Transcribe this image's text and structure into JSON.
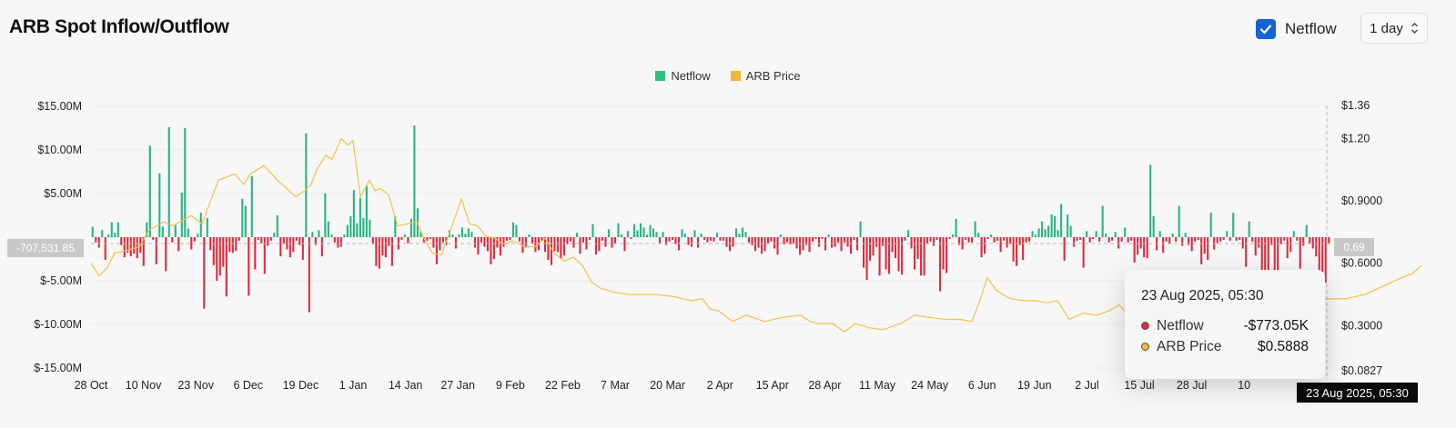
{
  "header": {
    "title": "ARB Spot Inflow/Outflow",
    "netflow_toggle_label": "Netflow",
    "interval_value": "1 day"
  },
  "crosshair": {
    "left_value": "-707,531.85",
    "right_value": "0.69",
    "time_label": "23 Aug 2025, 05:30"
  },
  "tooltip": {
    "date": "23 Aug 2025, 05:30",
    "rows": [
      {
        "name": "Netflow",
        "value": "-$773.05K",
        "color": "#e2293c"
      },
      {
        "name": "ARB Price",
        "value": "$0.5888",
        "color": "#f0b93a"
      }
    ]
  },
  "colors": {
    "positive": "#27b582",
    "negative": "#e2293c",
    "price": "#f5c04d",
    "accent": "#1463d4"
  },
  "chart_data": {
    "type": "bar+line",
    "legend": [
      "Netflow",
      "ARB Price"
    ],
    "x_tick_labels": [
      "28 Oct",
      "10 Nov",
      "23 Nov",
      "6 Dec",
      "19 Dec",
      "1 Jan",
      "14 Jan",
      "27 Jan",
      "9 Feb",
      "22 Feb",
      "7 Mar",
      "20 Mar",
      "2 Apr",
      "15 Apr",
      "28 Apr",
      "11 May",
      "24 May",
      "6 Jun",
      "19 Jun",
      "2 Jul",
      "15 Jul",
      "28 Jul",
      "10"
    ],
    "y_left": {
      "ticks": [
        15,
        10,
        5,
        0,
        -5,
        -10,
        -15
      ],
      "tick_labels": [
        "$15.00M",
        "$10.00M",
        "$5.00M",
        "",
        "$-5.00M",
        "$-10.00M",
        "$-15.00M"
      ],
      "range": [
        -15,
        15
      ],
      "unit": "M USD"
    },
    "y_right": {
      "tick_labels": [
        "$1.36",
        "$1.20",
        "$0.9000",
        "$0.6000",
        "$0.3000",
        "$0.0827"
      ],
      "tick_values": [
        1.36,
        1.2,
        0.9,
        0.6,
        0.3,
        0.0827
      ],
      "range": [
        0.0827,
        1.36
      ]
    },
    "series": [
      {
        "name": "Netflow",
        "unit": "M USD",
        "values": [
          1.2,
          -0.6,
          -1.2,
          0.8,
          -2.6,
          0.3,
          1.7,
          0.5,
          1.7,
          -0.9,
          -2.3,
          -1.8,
          -2.2,
          -1.9,
          -2.4,
          -1.8,
          -3.3,
          1.7,
          10.5,
          -0.3,
          -3.1,
          7.3,
          1.2,
          -3.9,
          12.6,
          -0.6,
          1.4,
          -1.6,
          5.1,
          12.5,
          1.0,
          -1.4,
          -0.5,
          0.4,
          2.8,
          -8.2,
          2.2,
          -1.5,
          -3.2,
          -5.0,
          -4.4,
          -3.4,
          -6.8,
          -1.7,
          -1.8,
          -1.6,
          -0.4,
          4.4,
          3.6,
          -6.7,
          7.0,
          -3.7,
          -0.3,
          -0.7,
          -4.2,
          -1.0,
          -0.4,
          0.5,
          2.5,
          -2.2,
          -0.8,
          -1.4,
          -2.3,
          -1.7,
          -0.4,
          -0.9,
          -2.6,
          11.9,
          -8.6,
          0.6,
          -0.9,
          0.8,
          -2.2,
          5.0,
          1.8,
          0.3,
          -0.6,
          -1.2,
          -1.1,
          0.3,
          1.4,
          2.4,
          5.4,
          1.6,
          4.5,
          2.2,
          5.9,
          2.0,
          -0.8,
          -3.3,
          -3.6,
          -2.1,
          -2.3,
          -1.0,
          -3.3,
          2.4,
          -1.4,
          -0.3,
          0.3,
          -0.7,
          2.1,
          12.8,
          3.3,
          0.7,
          -0.6,
          -0.4,
          -0.2,
          -1.2,
          -3.1,
          -1.5,
          -0.6,
          -0.9,
          0.8,
          0.3,
          -1.3,
          0.3,
          1.1,
          0.4,
          1.0,
          0.6,
          -1.2,
          -2.0,
          -0.6,
          -1.1,
          -1.6,
          -3.1,
          -2.5,
          -1.2,
          -2.1,
          -1.1,
          -0.4,
          -0.3,
          1.7,
          1.4,
          -0.5,
          -1.8,
          -1.2,
          0.3,
          -0.7,
          -1.7,
          -1.5,
          -0.4,
          -1.7,
          -2.6,
          -3.2,
          -1.6,
          -1.7,
          -2.4,
          -2.1,
          -0.8,
          -0.5,
          -1.2,
          0.5,
          -1.9,
          -0.6,
          -1.4,
          -0.3,
          1.5,
          -2.0,
          -1.6,
          -0.4,
          -1.1,
          0.9,
          -1.2,
          -0.8,
          1.6,
          0.3,
          -1.6,
          0.7,
          -0.2,
          1.5,
          0.8,
          1.6,
          1.1,
          0.3,
          1.4,
          1.0,
          0.6,
          -0.7,
          0.6,
          -0.9,
          -0.5,
          -0.3,
          -0.8,
          -1.5,
          0.9,
          0.4,
          -0.9,
          -1.1,
          0.8,
          -1.2,
          0.4,
          -0.3,
          -0.6,
          -0.4,
          -0.5,
          0.5,
          -0.4,
          -0.4,
          -1.1,
          -1.6,
          -1.1,
          1.0,
          0.4,
          1.1,
          0.6,
          -0.6,
          -0.9,
          -1.6,
          -1.2,
          -1.9,
          -1.6,
          -0.7,
          -0.5,
          -1.3,
          -2.0,
          0.3,
          -0.8,
          -0.6,
          -0.8,
          -0.7,
          -1.3,
          -2.0,
          -1.5,
          -0.9,
          -1.7,
          -0.5,
          -0.2,
          -1.1,
          -0.2,
          -1.5,
          0.3,
          -1.2,
          -1.1,
          -0.6,
          -1.6,
          -0.6,
          -1.1,
          -1.9,
          -0.3,
          -1.5,
          1.8,
          -3.5,
          -4.9,
          -2.7,
          -2.1,
          -1.1,
          -4.4,
          -1.0,
          -3.7,
          -4.2,
          -1.7,
          -2.4,
          -3.9,
          -4.3,
          -0.4,
          0.8,
          -1.3,
          -3.7,
          -2.5,
          -4.4,
          -4.4,
          -0.8,
          -0.5,
          -1.0,
          -0.3,
          -6.2,
          -3.7,
          -4.1,
          -0.2,
          0.3,
          2.1,
          -0.9,
          -1.4,
          -0.3,
          -0.6,
          -0.6,
          1.8,
          0.5,
          -2.3,
          -1.9,
          -0.2,
          0.3,
          -0.6,
          -0.4,
          -1.7,
          -0.4,
          -1.2,
          -0.8,
          -2.8,
          -3.3,
          -0.9,
          -2.6,
          -0.6,
          -0.5,
          0.7,
          0.3,
          1.0,
          1.8,
          0.9,
          1.3,
          2.6,
          2.4,
          0.8,
          3.8,
          -2.7,
          2.6,
          1.3,
          -1.1,
          -0.4,
          -0.3,
          -3.5,
          0.7,
          -0.6,
          -0.2,
          0.7,
          -0.5,
          3.6,
          0.4,
          -0.6,
          -0.4,
          0.6,
          -1.3,
          -0.5,
          1.1,
          -0.6,
          -0.4,
          -2.9,
          -2.0,
          -1.3,
          -2.3,
          -2.4,
          8.3,
          2.4,
          -1.5,
          0.7,
          -1.8,
          -0.5,
          -0.8,
          0.4,
          -0.5,
          3.6,
          -1.0,
          0.5,
          -0.9,
          -1.6,
          -0.5,
          -0.3,
          -3.1,
          -1.9,
          -2.6,
          2.8,
          -1.4,
          -0.7,
          -0.5,
          -0.3,
          0.7,
          -0.4,
          2.8,
          -0.4,
          -0.3,
          -1.3,
          -3.4,
          1.8,
          -0.5,
          -2.1,
          -1.2,
          -4.4,
          -4.9,
          -4.2,
          -0.9,
          -7.1,
          -7.0,
          -0.8,
          -0.4,
          -2.4,
          -1.7,
          0.7,
          -0.4,
          -3.6,
          -1.0,
          1.4,
          -0.8,
          -1.3,
          -2.2,
          -6.5,
          -7.7,
          -5.2,
          -0.7
        ],
        "color": "#27b582 / #e2293c"
      },
      {
        "name": "ARB Price",
        "unit": "USD",
        "keypoints": [
          [
            0,
            0.6
          ],
          [
            9,
            0.54
          ],
          [
            18,
            0.58
          ],
          [
            26,
            0.65
          ],
          [
            38,
            0.66
          ],
          [
            53,
            0.68
          ],
          [
            64,
            0.76
          ],
          [
            80,
            0.8
          ],
          [
            90,
            0.78
          ],
          [
            98,
            0.8
          ],
          [
            110,
            0.83
          ],
          [
            122,
            0.79
          ],
          [
            140,
            1.0
          ],
          [
            158,
            1.03
          ],
          [
            168,
            0.98
          ],
          [
            175,
            1.03
          ],
          [
            190,
            1.07
          ],
          [
            205,
            1.0
          ],
          [
            225,
            0.92
          ],
          [
            235,
            0.95
          ],
          [
            242,
            0.98
          ],
          [
            248,
            1.05
          ],
          [
            258,
            1.12
          ],
          [
            265,
            1.1
          ],
          [
            275,
            1.2
          ],
          [
            282,
            1.17
          ],
          [
            288,
            1.19
          ],
          [
            296,
            0.92
          ],
          [
            306,
            1.0
          ],
          [
            312,
            0.95
          ],
          [
            318,
            0.96
          ],
          [
            327,
            0.93
          ],
          [
            337,
            0.78
          ],
          [
            348,
            0.79
          ],
          [
            358,
            0.8
          ],
          [
            366,
            0.72
          ],
          [
            375,
            0.65
          ],
          [
            385,
            0.64
          ],
          [
            396,
            0.77
          ],
          [
            407,
            0.91
          ],
          [
            416,
            0.79
          ],
          [
            425,
            0.78
          ],
          [
            434,
            0.73
          ],
          [
            444,
            0.72
          ],
          [
            455,
            0.69
          ],
          [
            463,
            0.71
          ],
          [
            477,
            0.68
          ],
          [
            488,
            0.68
          ],
          [
            499,
            0.72
          ],
          [
            509,
            0.65
          ],
          [
            520,
            0.61
          ],
          [
            530,
            0.63
          ],
          [
            540,
            0.59
          ],
          [
            550,
            0.51
          ],
          [
            560,
            0.48
          ],
          [
            575,
            0.46
          ],
          [
            590,
            0.45
          ],
          [
            605,
            0.45
          ],
          [
            620,
            0.45
          ],
          [
            640,
            0.44
          ],
          [
            660,
            0.42
          ],
          [
            672,
            0.43
          ],
          [
            680,
            0.38
          ],
          [
            690,
            0.37
          ],
          [
            705,
            0.32
          ],
          [
            720,
            0.35
          ],
          [
            740,
            0.32
          ],
          [
            760,
            0.34
          ],
          [
            780,
            0.35
          ],
          [
            790,
            0.32
          ],
          [
            800,
            0.31
          ],
          [
            815,
            0.31
          ],
          [
            828,
            0.27
          ],
          [
            840,
            0.31
          ],
          [
            855,
            0.29
          ],
          [
            870,
            0.28
          ],
          [
            890,
            0.31
          ],
          [
            905,
            0.35
          ],
          [
            920,
            0.34
          ],
          [
            940,
            0.33
          ],
          [
            955,
            0.33
          ],
          [
            968,
            0.32
          ],
          [
            975,
            0.4
          ],
          [
            985,
            0.53
          ],
          [
            995,
            0.47
          ],
          [
            1010,
            0.43
          ],
          [
            1025,
            0.42
          ],
          [
            1038,
            0.42
          ],
          [
            1050,
            0.41
          ],
          [
            1062,
            0.42
          ],
          [
            1075,
            0.33
          ],
          [
            1090,
            0.36
          ],
          [
            1105,
            0.35
          ],
          [
            1118,
            0.37
          ],
          [
            1130,
            0.4
          ],
          [
            1140,
            0.35
          ],
          [
            1155,
            0.31
          ],
          [
            1170,
            0.29
          ],
          [
            1180,
            0.28
          ],
          [
            1195,
            0.32
          ],
          [
            1205,
            0.35
          ],
          [
            1210,
            0.38
          ],
          [
            1225,
            0.45
          ],
          [
            1235,
            0.42
          ],
          [
            1380,
            0.43
          ],
          [
            1400,
            0.45
          ],
          [
            1425,
            0.5
          ],
          [
            1440,
            0.53
          ],
          [
            1452,
            0.55
          ],
          [
            1462,
            0.59
          ]
        ]
      }
    ]
  }
}
